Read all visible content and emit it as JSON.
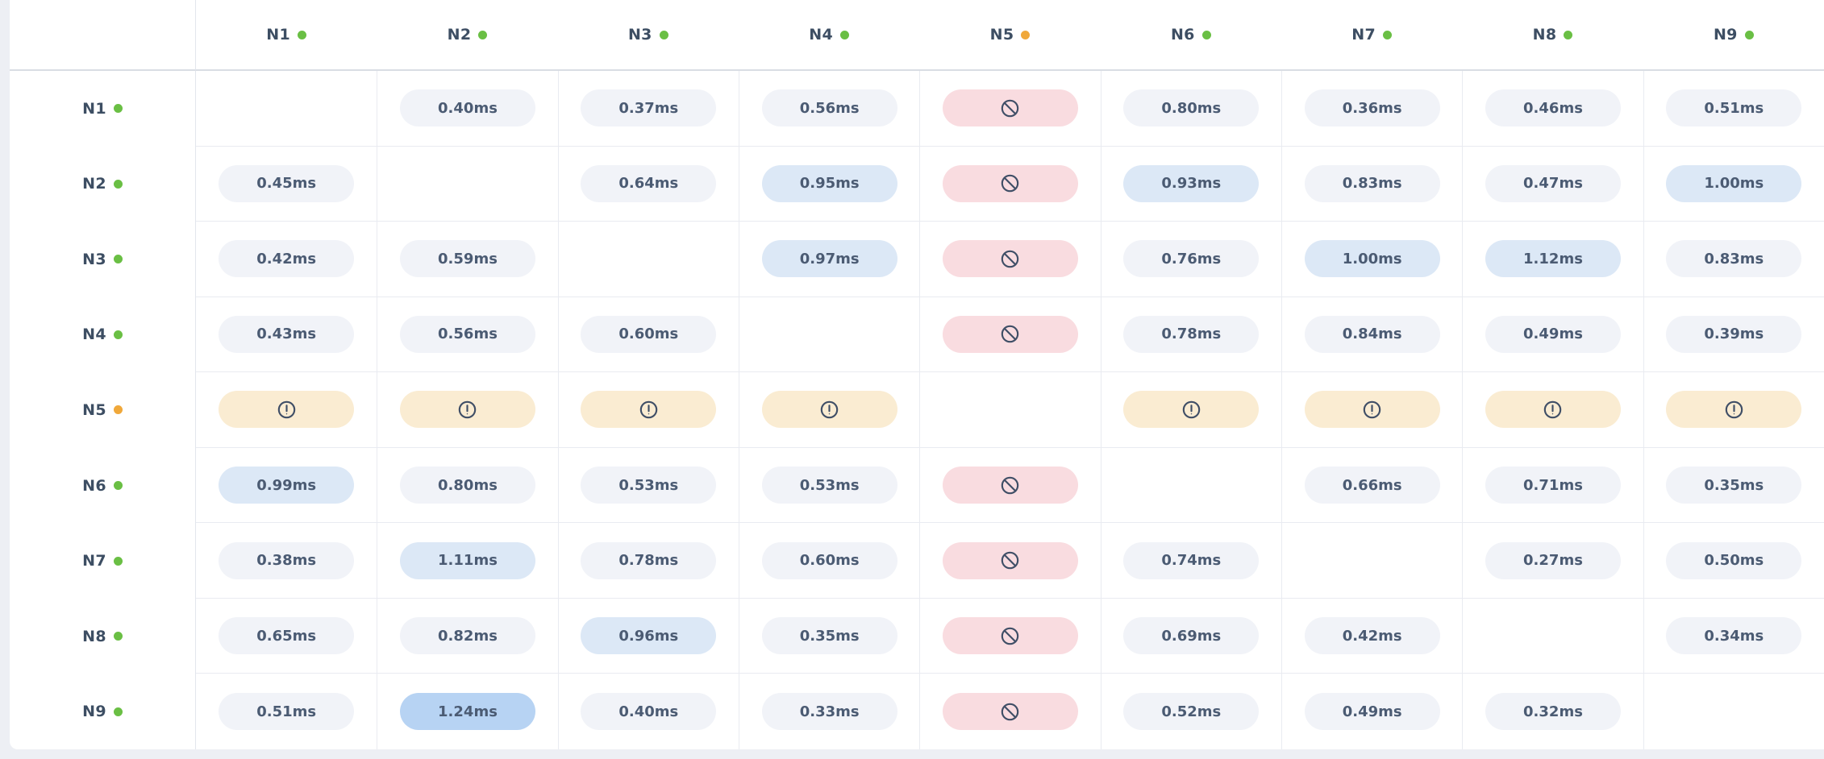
{
  "matrix": {
    "columns": [
      {
        "id": "N1",
        "status": "ok"
      },
      {
        "id": "N2",
        "status": "ok"
      },
      {
        "id": "N3",
        "status": "ok"
      },
      {
        "id": "N4",
        "status": "ok"
      },
      {
        "id": "N5",
        "status": "warn"
      },
      {
        "id": "N6",
        "status": "ok"
      },
      {
        "id": "N7",
        "status": "ok"
      },
      {
        "id": "N8",
        "status": "ok"
      },
      {
        "id": "N9",
        "status": "ok"
      }
    ],
    "rows": [
      {
        "id": "N1",
        "status": "ok",
        "cells": [
          {
            "type": "self"
          },
          {
            "type": "latency",
            "label": "0.40ms",
            "level": "normal"
          },
          {
            "type": "latency",
            "label": "0.37ms",
            "level": "normal"
          },
          {
            "type": "latency",
            "label": "0.56ms",
            "level": "normal"
          },
          {
            "type": "unreachable"
          },
          {
            "type": "latency",
            "label": "0.80ms",
            "level": "normal"
          },
          {
            "type": "latency",
            "label": "0.36ms",
            "level": "normal"
          },
          {
            "type": "latency",
            "label": "0.46ms",
            "level": "normal"
          },
          {
            "type": "latency",
            "label": "0.51ms",
            "level": "normal"
          }
        ]
      },
      {
        "id": "N2",
        "status": "ok",
        "cells": [
          {
            "type": "latency",
            "label": "0.45ms",
            "level": "normal"
          },
          {
            "type": "self"
          },
          {
            "type": "latency",
            "label": "0.64ms",
            "level": "normal"
          },
          {
            "type": "latency",
            "label": "0.95ms",
            "level": "elevated"
          },
          {
            "type": "unreachable"
          },
          {
            "type": "latency",
            "label": "0.93ms",
            "level": "elevated"
          },
          {
            "type": "latency",
            "label": "0.83ms",
            "level": "normal"
          },
          {
            "type": "latency",
            "label": "0.47ms",
            "level": "normal"
          },
          {
            "type": "latency",
            "label": "1.00ms",
            "level": "elevated"
          }
        ]
      },
      {
        "id": "N3",
        "status": "ok",
        "cells": [
          {
            "type": "latency",
            "label": "0.42ms",
            "level": "normal"
          },
          {
            "type": "latency",
            "label": "0.59ms",
            "level": "normal"
          },
          {
            "type": "self"
          },
          {
            "type": "latency",
            "label": "0.97ms",
            "level": "elevated"
          },
          {
            "type": "unreachable"
          },
          {
            "type": "latency",
            "label": "0.76ms",
            "level": "normal"
          },
          {
            "type": "latency",
            "label": "1.00ms",
            "level": "elevated"
          },
          {
            "type": "latency",
            "label": "1.12ms",
            "level": "elevated"
          },
          {
            "type": "latency",
            "label": "0.83ms",
            "level": "normal"
          }
        ]
      },
      {
        "id": "N4",
        "status": "ok",
        "cells": [
          {
            "type": "latency",
            "label": "0.43ms",
            "level": "normal"
          },
          {
            "type": "latency",
            "label": "0.56ms",
            "level": "normal"
          },
          {
            "type": "latency",
            "label": "0.60ms",
            "level": "normal"
          },
          {
            "type": "self"
          },
          {
            "type": "unreachable"
          },
          {
            "type": "latency",
            "label": "0.78ms",
            "level": "normal"
          },
          {
            "type": "latency",
            "label": "0.84ms",
            "level": "normal"
          },
          {
            "type": "latency",
            "label": "0.49ms",
            "level": "normal"
          },
          {
            "type": "latency",
            "label": "0.39ms",
            "level": "normal"
          }
        ]
      },
      {
        "id": "N5",
        "status": "warn",
        "cells": [
          {
            "type": "warning"
          },
          {
            "type": "warning"
          },
          {
            "type": "warning"
          },
          {
            "type": "warning"
          },
          {
            "type": "self"
          },
          {
            "type": "warning"
          },
          {
            "type": "warning"
          },
          {
            "type": "warning"
          },
          {
            "type": "warning"
          }
        ]
      },
      {
        "id": "N6",
        "status": "ok",
        "cells": [
          {
            "type": "latency",
            "label": "0.99ms",
            "level": "elevated"
          },
          {
            "type": "latency",
            "label": "0.80ms",
            "level": "normal"
          },
          {
            "type": "latency",
            "label": "0.53ms",
            "level": "normal"
          },
          {
            "type": "latency",
            "label": "0.53ms",
            "level": "normal"
          },
          {
            "type": "unreachable"
          },
          {
            "type": "self"
          },
          {
            "type": "latency",
            "label": "0.66ms",
            "level": "normal"
          },
          {
            "type": "latency",
            "label": "0.71ms",
            "level": "normal"
          },
          {
            "type": "latency",
            "label": "0.35ms",
            "level": "normal"
          }
        ]
      },
      {
        "id": "N7",
        "status": "ok",
        "cells": [
          {
            "type": "latency",
            "label": "0.38ms",
            "level": "normal"
          },
          {
            "type": "latency",
            "label": "1.11ms",
            "level": "elevated"
          },
          {
            "type": "latency",
            "label": "0.78ms",
            "level": "normal"
          },
          {
            "type": "latency",
            "label": "0.60ms",
            "level": "normal"
          },
          {
            "type": "unreachable"
          },
          {
            "type": "latency",
            "label": "0.74ms",
            "level": "normal"
          },
          {
            "type": "self"
          },
          {
            "type": "latency",
            "label": "0.27ms",
            "level": "normal"
          },
          {
            "type": "latency",
            "label": "0.50ms",
            "level": "normal"
          }
        ]
      },
      {
        "id": "N8",
        "status": "ok",
        "cells": [
          {
            "type": "latency",
            "label": "0.65ms",
            "level": "normal"
          },
          {
            "type": "latency",
            "label": "0.82ms",
            "level": "normal"
          },
          {
            "type": "latency",
            "label": "0.96ms",
            "level": "elevated"
          },
          {
            "type": "latency",
            "label": "0.35ms",
            "level": "normal"
          },
          {
            "type": "unreachable"
          },
          {
            "type": "latency",
            "label": "0.69ms",
            "level": "normal"
          },
          {
            "type": "latency",
            "label": "0.42ms",
            "level": "normal"
          },
          {
            "type": "self"
          },
          {
            "type": "latency",
            "label": "0.34ms",
            "level": "normal"
          }
        ]
      },
      {
        "id": "N9",
        "status": "ok",
        "cells": [
          {
            "type": "latency",
            "label": "0.51ms",
            "level": "normal"
          },
          {
            "type": "latency",
            "label": "1.24ms",
            "level": "high"
          },
          {
            "type": "latency",
            "label": "0.40ms",
            "level": "normal"
          },
          {
            "type": "latency",
            "label": "0.33ms",
            "level": "normal"
          },
          {
            "type": "unreachable"
          },
          {
            "type": "latency",
            "label": "0.52ms",
            "level": "normal"
          },
          {
            "type": "latency",
            "label": "0.49ms",
            "level": "normal"
          },
          {
            "type": "latency",
            "label": "0.32ms",
            "level": "normal"
          },
          {
            "type": "self"
          }
        ]
      }
    ]
  },
  "icons": {
    "unreachable": "no-entry-icon",
    "warning": "alert-circle-icon",
    "node_status": "status-dot"
  },
  "colors": {
    "status_ok": "#6abf44",
    "status_warn": "#f0a83a",
    "pill_normal": "#f1f3f8",
    "pill_elevated": "#dce8f6",
    "pill_high": "#b7d3f3",
    "pill_unreachable": "#f9dce0",
    "pill_warning": "#faecd2",
    "label_text": "#3d4e63",
    "value_text": "#4b5b73"
  },
  "chart_data": {
    "type": "heatmap",
    "unit": "ms",
    "x": [
      "N1",
      "N2",
      "N3",
      "N4",
      "N5",
      "N6",
      "N7",
      "N8",
      "N9"
    ],
    "y": [
      "N1",
      "N2",
      "N3",
      "N4",
      "N5",
      "N6",
      "N7",
      "N8",
      "N9"
    ],
    "values": [
      [
        null,
        0.4,
        0.37,
        0.56,
        "unreachable",
        0.8,
        0.36,
        0.46,
        0.51
      ],
      [
        0.45,
        null,
        0.64,
        0.95,
        "unreachable",
        0.93,
        0.83,
        0.47,
        1.0
      ],
      [
        0.42,
        0.59,
        null,
        0.97,
        "unreachable",
        0.76,
        1.0,
        1.12,
        0.83
      ],
      [
        0.43,
        0.56,
        0.6,
        null,
        "unreachable",
        0.78,
        0.84,
        0.49,
        0.39
      ],
      [
        "warning",
        "warning",
        "warning",
        "warning",
        null,
        "warning",
        "warning",
        "warning",
        "warning"
      ],
      [
        0.99,
        0.8,
        0.53,
        0.53,
        "unreachable",
        null,
        0.66,
        0.71,
        0.35
      ],
      [
        0.38,
        1.11,
        0.78,
        0.6,
        "unreachable",
        0.74,
        null,
        0.27,
        0.5
      ],
      [
        0.65,
        0.82,
        0.96,
        0.35,
        "unreachable",
        0.69,
        0.42,
        null,
        0.34
      ],
      [
        0.51,
        1.24,
        0.4,
        0.33,
        "unreachable",
        0.52,
        0.49,
        0.32,
        null
      ]
    ],
    "node_status": {
      "N1": "ok",
      "N2": "ok",
      "N3": "ok",
      "N4": "ok",
      "N5": "warn",
      "N6": "ok",
      "N7": "ok",
      "N8": "ok",
      "N9": "ok"
    }
  }
}
